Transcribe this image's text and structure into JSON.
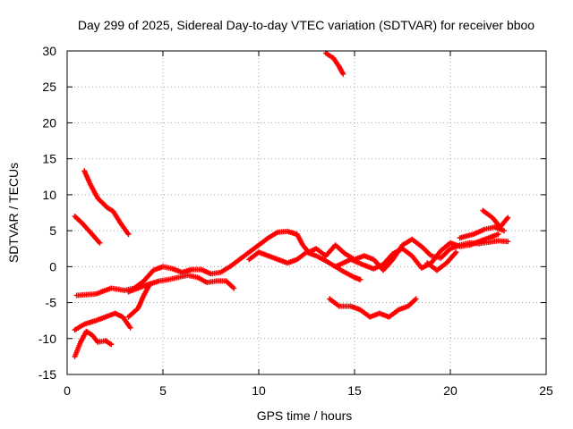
{
  "chart_data": {
    "type": "scatter",
    "title": "Day 299 of 2025, Sidereal Day-to-day VTEC variation (SDTVAR) for receiver bboo",
    "xlabel": "GPS time / hours",
    "ylabel": "SDTVAR / TECUs",
    "xlim": [
      0,
      25
    ],
    "ylim": [
      -15,
      30
    ],
    "x_ticks": [
      0,
      5,
      10,
      15,
      20,
      25
    ],
    "y_ticks": [
      -15,
      -10,
      -5,
      0,
      5,
      10,
      15,
      20,
      25,
      30
    ],
    "grid": true,
    "marker": "plus",
    "color": "#ff0000",
    "series": [
      {
        "name": "track-1",
        "points": [
          [
            0.9,
            13.3
          ],
          [
            1.2,
            11.5
          ],
          [
            1.6,
            9.5
          ],
          [
            2.1,
            8.2
          ],
          [
            2.4,
            7.7
          ],
          [
            2.8,
            6.0
          ],
          [
            3.2,
            4.5
          ]
        ]
      },
      {
        "name": "track-2",
        "points": [
          [
            0.4,
            7.0
          ],
          [
            0.8,
            6.0
          ],
          [
            1.2,
            4.8
          ],
          [
            1.7,
            3.3
          ]
        ]
      },
      {
        "name": "track-3",
        "points": [
          [
            13.5,
            29.7
          ],
          [
            13.9,
            29.0
          ],
          [
            14.2,
            27.8
          ],
          [
            14.4,
            26.8
          ]
        ]
      },
      {
        "name": "track-4",
        "points": [
          [
            0.5,
            -4.0
          ],
          [
            1.5,
            -3.8
          ],
          [
            2.3,
            -3.0
          ],
          [
            3.0,
            -3.3
          ],
          [
            3.5,
            -3.0
          ],
          [
            4.0,
            -2.0
          ],
          [
            4.5,
            -0.5
          ],
          [
            5.0,
            0.0
          ],
          [
            5.5,
            -0.3
          ],
          [
            6.0,
            -0.8
          ],
          [
            6.5,
            -0.4
          ],
          [
            7.0,
            -0.4
          ],
          [
            7.5,
            -1.0
          ],
          [
            8.0,
            -0.8
          ],
          [
            8.5,
            0.0
          ],
          [
            9.0,
            1.0
          ],
          [
            9.5,
            2.0
          ],
          [
            10.0,
            3.0
          ],
          [
            10.5,
            4.0
          ],
          [
            11.0,
            4.8
          ],
          [
            11.5,
            4.9
          ],
          [
            12.0,
            4.5
          ],
          [
            12.3,
            3.0
          ],
          [
            12.6,
            2.0
          ],
          [
            13.0,
            2.5
          ],
          [
            13.5,
            1.5
          ],
          [
            14.0,
            3.0
          ],
          [
            14.5,
            1.8
          ],
          [
            15.0,
            1.0
          ],
          [
            15.5,
            1.5
          ],
          [
            16.0,
            1.0
          ],
          [
            16.5,
            -0.5
          ],
          [
            17.0,
            1.0
          ],
          [
            17.5,
            3.0
          ],
          [
            18.0,
            3.8
          ],
          [
            18.5,
            2.8
          ],
          [
            19.0,
            1.5
          ],
          [
            19.5,
            1.2
          ],
          [
            20.0,
            2.5
          ],
          [
            20.5,
            3.0
          ],
          [
            21.0,
            3.3
          ],
          [
            21.5,
            3.2
          ],
          [
            22.0,
            3.4
          ],
          [
            22.5,
            3.6
          ],
          [
            23.0,
            3.5
          ]
        ]
      },
      {
        "name": "track-5",
        "points": [
          [
            3.2,
            -3.5
          ],
          [
            3.7,
            -3.0
          ],
          [
            4.2,
            -2.5
          ],
          [
            4.8,
            -2.0
          ],
          [
            5.3,
            -1.8
          ],
          [
            5.8,
            -1.5
          ],
          [
            6.3,
            -1.2
          ],
          [
            6.8,
            -1.5
          ],
          [
            7.3,
            -2.2
          ],
          [
            7.8,
            -2.0
          ],
          [
            8.3,
            -2.0
          ],
          [
            8.7,
            -3.0
          ]
        ]
      },
      {
        "name": "track-6",
        "points": [
          [
            9.5,
            1.0
          ],
          [
            10.0,
            2.0
          ],
          [
            10.5,
            1.5
          ],
          [
            11.0,
            1.0
          ],
          [
            11.5,
            0.5
          ],
          [
            12.0,
            1.0
          ],
          [
            12.5,
            2.0
          ],
          [
            13.0,
            1.5
          ],
          [
            13.5,
            0.8
          ],
          [
            14.0,
            0.0
          ],
          [
            14.5,
            -0.8
          ],
          [
            15.0,
            -1.5
          ],
          [
            15.3,
            -1.8
          ]
        ]
      },
      {
        "name": "track-7",
        "points": [
          [
            14.0,
            0.0
          ],
          [
            14.8,
            1.0
          ],
          [
            15.5,
            0.2
          ],
          [
            16.0,
            -0.3
          ],
          [
            16.5,
            0.3
          ],
          [
            17.0,
            1.8
          ],
          [
            17.5,
            2.5
          ],
          [
            18.0,
            1.5
          ],
          [
            18.5,
            -0.2
          ],
          [
            19.0,
            0.5
          ],
          [
            19.5,
            2.2
          ],
          [
            20.0,
            3.3
          ],
          [
            20.5,
            2.8
          ],
          [
            21.0,
            3.0
          ],
          [
            21.5,
            3.5
          ],
          [
            22.0,
            4.0
          ],
          [
            22.5,
            4.5
          ]
        ]
      },
      {
        "name": "track-8",
        "points": [
          [
            21.7,
            7.8
          ],
          [
            22.2,
            6.8
          ],
          [
            22.6,
            5.5
          ],
          [
            23.0,
            6.8
          ]
        ]
      },
      {
        "name": "track-9",
        "points": [
          [
            20.5,
            4.0
          ],
          [
            21.2,
            4.5
          ],
          [
            21.8,
            5.2
          ],
          [
            22.3,
            5.5
          ],
          [
            22.8,
            5.0
          ]
        ]
      },
      {
        "name": "track-10",
        "points": [
          [
            18.8,
            0.5
          ],
          [
            19.3,
            -0.5
          ],
          [
            19.8,
            0.5
          ],
          [
            20.3,
            2.0
          ]
        ]
      },
      {
        "name": "track-11",
        "points": [
          [
            0.4,
            -8.8
          ],
          [
            0.9,
            -8.0
          ],
          [
            1.5,
            -7.5
          ],
          [
            2.0,
            -7.0
          ],
          [
            2.5,
            -6.5
          ],
          [
            2.9,
            -7.0
          ],
          [
            3.3,
            -8.5
          ]
        ]
      },
      {
        "name": "track-12",
        "points": [
          [
            3.2,
            -7.0
          ],
          [
            3.7,
            -5.8
          ],
          [
            4.0,
            -4.0
          ],
          [
            4.3,
            -2.5
          ]
        ]
      },
      {
        "name": "track-13",
        "points": [
          [
            0.4,
            -12.5
          ],
          [
            0.7,
            -10.5
          ],
          [
            1.0,
            -9.0
          ],
          [
            1.3,
            -9.5
          ],
          [
            1.6,
            -10.5
          ],
          [
            2.0,
            -10.3
          ],
          [
            2.3,
            -10.8
          ]
        ]
      },
      {
        "name": "track-14",
        "points": [
          [
            13.7,
            -4.5
          ],
          [
            14.2,
            -5.5
          ],
          [
            14.8,
            -5.5
          ],
          [
            15.3,
            -6.0
          ],
          [
            15.8,
            -7.0
          ],
          [
            16.3,
            -6.5
          ],
          [
            16.8,
            -7.0
          ],
          [
            17.3,
            -6.0
          ],
          [
            17.8,
            -5.5
          ],
          [
            18.2,
            -4.5
          ]
        ]
      }
    ]
  }
}
